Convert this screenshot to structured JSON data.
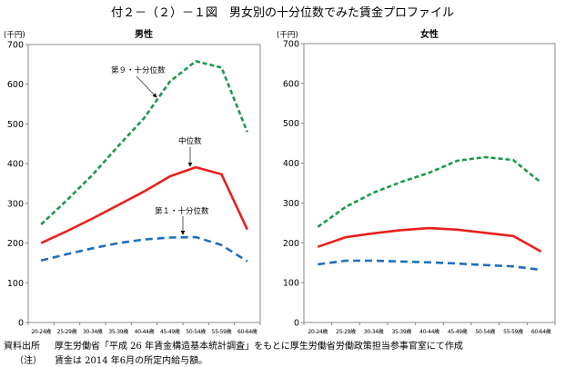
{
  "figure_title": "付２－（２）－１図　男女別の十分位数でみた賃金プロファイル",
  "notes": {
    "source_label": "資料出所",
    "source_text": "厚生労働省「平成 26 年賃金構造基本統計調査」をもとに厚生労働省労働政策担当参事官室にて作成",
    "note_label": "（注）",
    "note_text": "賃金は 2014 年6月の所定内給与額。"
  },
  "colors": {
    "decile9": "#1a9a4a",
    "median": "#e8201c",
    "decile1": "#1f6fbf",
    "axis": "#888888"
  },
  "chart_data": [
    {
      "type": "line",
      "title": "男性",
      "ylabel": "(千円)",
      "xlabel": "",
      "ylim": [
        0,
        700
      ],
      "yticks": [
        0,
        100,
        200,
        300,
        400,
        500,
        600,
        700
      ],
      "grid": false,
      "categories": [
        "20-24歳",
        "25-29歳",
        "30-34歳",
        "35-39歳",
        "40-44歳",
        "45-49歳",
        "50-54歳",
        "55-59歳",
        "60-64歳"
      ],
      "series": [
        {
          "name": "第９・十分位数",
          "style": "dashed",
          "values": [
            247,
            308,
            372,
            445,
            515,
            607,
            658,
            642,
            480
          ]
        },
        {
          "name": "中位数",
          "style": "solid",
          "values": [
            200,
            230,
            262,
            296,
            330,
            368,
            391,
            373,
            234
          ]
        },
        {
          "name": "第１・十分位数",
          "style": "dashed",
          "values": [
            156,
            172,
            187,
            200,
            209,
            214,
            215,
            195,
            154
          ]
        }
      ],
      "annotations": [
        {
          "text": "第９・十分位数",
          "series": "第９・十分位数"
        },
        {
          "text": "中位数",
          "series": "中位数"
        },
        {
          "text": "第１・十分位数",
          "series": "第１・十分位数"
        }
      ]
    },
    {
      "type": "line",
      "title": "女性",
      "ylabel": "(千円)",
      "xlabel": "",
      "ylim": [
        0,
        700
      ],
      "yticks": [
        0,
        100,
        200,
        300,
        400,
        500,
        600,
        700
      ],
      "grid": false,
      "categories": [
        "20-24歳",
        "25-29歳",
        "30-34歳",
        "35-39歳",
        "40-44歳",
        "45-49歳",
        "50-54歳",
        "55-59歳",
        "60-64歳"
      ],
      "series": [
        {
          "name": "第９・十分位数",
          "style": "dashed",
          "values": [
            240,
            290,
            326,
            353,
            376,
            406,
            415,
            408,
            351
          ]
        },
        {
          "name": "中位数",
          "style": "solid",
          "values": [
            190,
            214,
            224,
            232,
            237,
            233,
            225,
            217,
            178
          ]
        },
        {
          "name": "第１・十分位数",
          "style": "dashed",
          "values": [
            146,
            155,
            155,
            153,
            151,
            148,
            144,
            141,
            132
          ]
        }
      ],
      "annotations": []
    }
  ]
}
